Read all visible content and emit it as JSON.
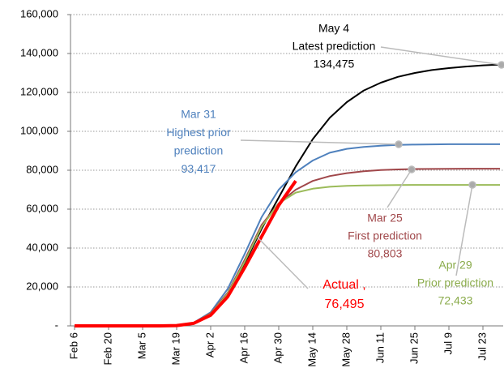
{
  "chart_data": {
    "type": "line",
    "categories": [
      "Feb 6",
      null,
      "Feb 20",
      null,
      "Mar 5",
      null,
      "Mar 19",
      null,
      "Apr 2",
      null,
      "Apr 16",
      null,
      "Apr 30",
      null,
      "May 14",
      null,
      "May 28",
      null,
      "Jun 11",
      null,
      "Jun 25",
      null,
      "Jul 9",
      null,
      "Jul 23",
      null
    ],
    "series": [
      {
        "name": "Latest prediction",
        "color": "#000000",
        "values": [
          0,
          0,
          0,
          0,
          0,
          0,
          200,
          1500,
          6000,
          16000,
          32000,
          50000,
          66000,
          82000,
          96000,
          107000,
          115000,
          121000,
          125000,
          128000,
          130000,
          131500,
          132500,
          133300,
          133900,
          134300
        ]
      },
      {
        "name": "Highest prior prediction",
        "color": "#4f81bd",
        "values": [
          0,
          0,
          0,
          0,
          0,
          0,
          200,
          1600,
          7000,
          19000,
          37000,
          56000,
          70000,
          79000,
          85000,
          89000,
          91000,
          92000,
          92600,
          93000,
          93200,
          93300,
          93400,
          93400,
          93400,
          93400
        ]
      },
      {
        "name": "First prediction",
        "color": "#a0474a",
        "values": [
          0,
          0,
          0,
          0,
          0,
          0,
          200,
          1500,
          6500,
          17000,
          34000,
          52000,
          63000,
          70000,
          74500,
          77000,
          78500,
          79500,
          80100,
          80400,
          80600,
          80700,
          80750,
          80800,
          80800,
          80800
        ]
      },
      {
        "name": "Prior prediction",
        "color": "#9bbb59",
        "values": [
          0,
          0,
          0,
          0,
          0,
          0,
          200,
          1500,
          6200,
          16500,
          33000,
          51000,
          63000,
          68500,
          70500,
          71500,
          72000,
          72200,
          72300,
          72400,
          72430,
          72430,
          72430,
          72430,
          72430,
          72430
        ]
      },
      {
        "name": "Actual",
        "color": "#ff0000",
        "values": [
          0,
          0,
          0,
          0,
          0,
          0,
          150,
          1300,
          5500,
          15000,
          30000,
          46000,
          62000,
          74500,
          null,
          null,
          null,
          null,
          null,
          null,
          null,
          null,
          null,
          null,
          null,
          null
        ]
      }
    ],
    "ylim": [
      0,
      160000
    ],
    "yticks": [
      {
        "value": 0,
        "label": "-"
      },
      {
        "value": 20000,
        "label": "20,000"
      },
      {
        "value": 40000,
        "label": "40,000"
      },
      {
        "value": 60000,
        "label": "60,000"
      },
      {
        "value": 80000,
        "label": "80,000"
      },
      {
        "value": 100000,
        "label": "100,000"
      },
      {
        "value": 120000,
        "label": "120,000"
      },
      {
        "value": 140000,
        "label": "140,000"
      },
      {
        "value": 160000,
        "label": "160,000"
      }
    ],
    "grid": true,
    "annotations": [
      {
        "lines": [
          "May 4",
          "Latest prediction",
          "134,475"
        ],
        "color": "#000000"
      },
      {
        "lines": [
          "Mar 31",
          "Highest prior",
          "prediction",
          "93,417"
        ],
        "color": "#4f81bd"
      },
      {
        "lines": [
          "Mar 25",
          "First prediction",
          "80,803"
        ],
        "color": "#a0474a"
      },
      {
        "lines": [
          "Apr 29",
          "Prior prediction",
          "72,433"
        ],
        "color": "#8aab4b"
      },
      {
        "lines": [
          "Actual ,",
          "76,495"
        ],
        "color": "#ff0000"
      }
    ]
  }
}
